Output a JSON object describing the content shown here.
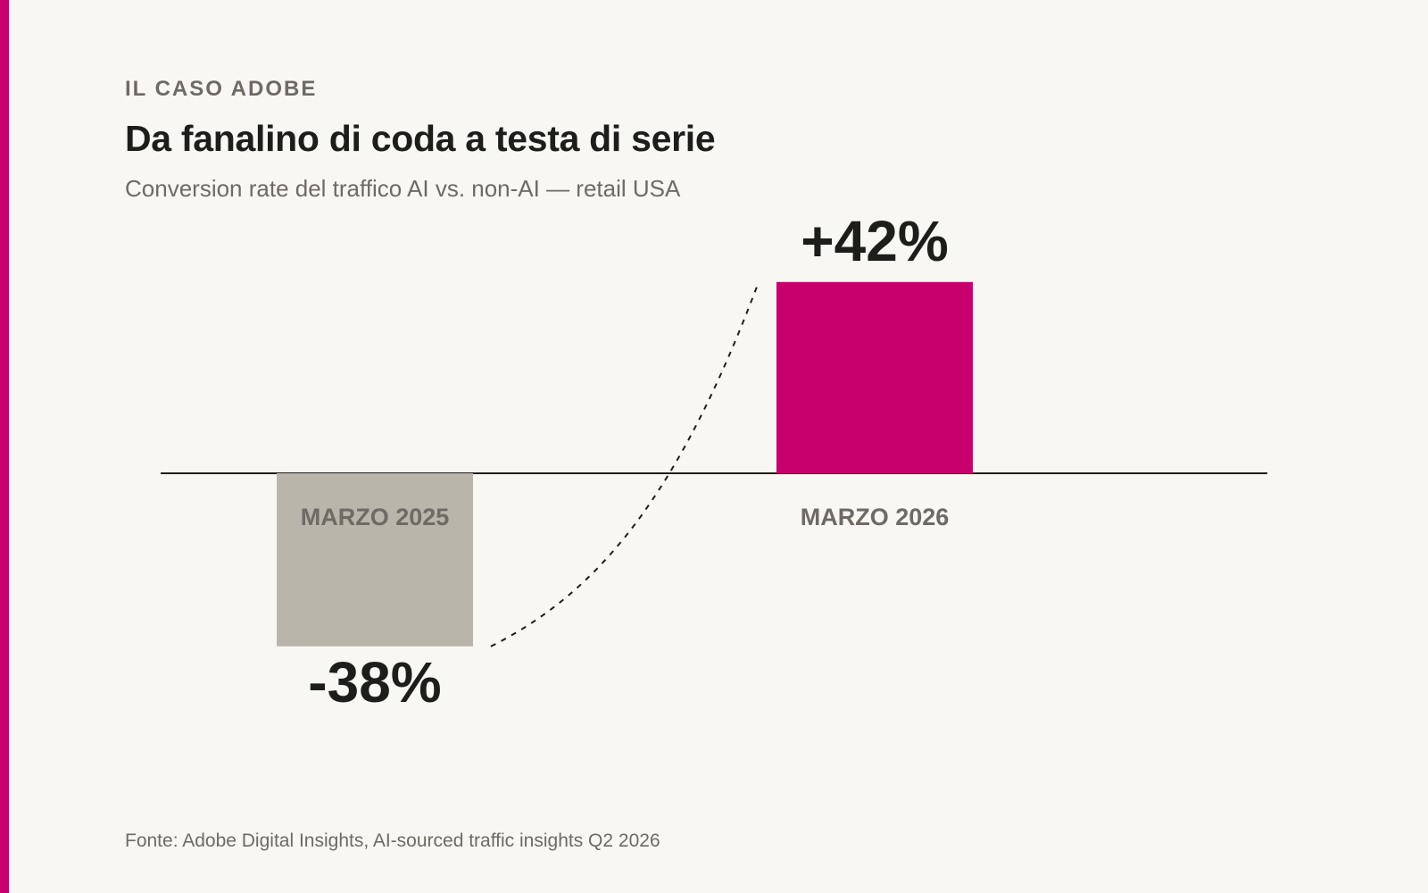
{
  "header": {
    "eyebrow": "IL CASO ADOBE",
    "title": "Da fanalino di coda a testa di serie",
    "subtitle": "Conversion rate del traffico AI vs. non-AI — retail USA"
  },
  "footer": {
    "source": "Fonte: Adobe Digital Insights, AI-sourced traffic insights Q2 2026"
  },
  "colors": {
    "accent": "#c8006e",
    "negative_bar": "#bab5ab",
    "positive_bar": "#c8006e",
    "axis": "#1d1d1b",
    "background": "#f8f7f3"
  },
  "chart_data": {
    "type": "bar",
    "categories": [
      "MARZO 2025",
      "MARZO 2026"
    ],
    "values": [
      -38,
      42
    ],
    "value_labels": [
      "-38%",
      "+42%"
    ],
    "unit": "%",
    "ylim": [
      -42,
      46
    ],
    "grid": false,
    "legend": "none",
    "zero_line": true,
    "connector": "dashed curve linking the two bars"
  }
}
